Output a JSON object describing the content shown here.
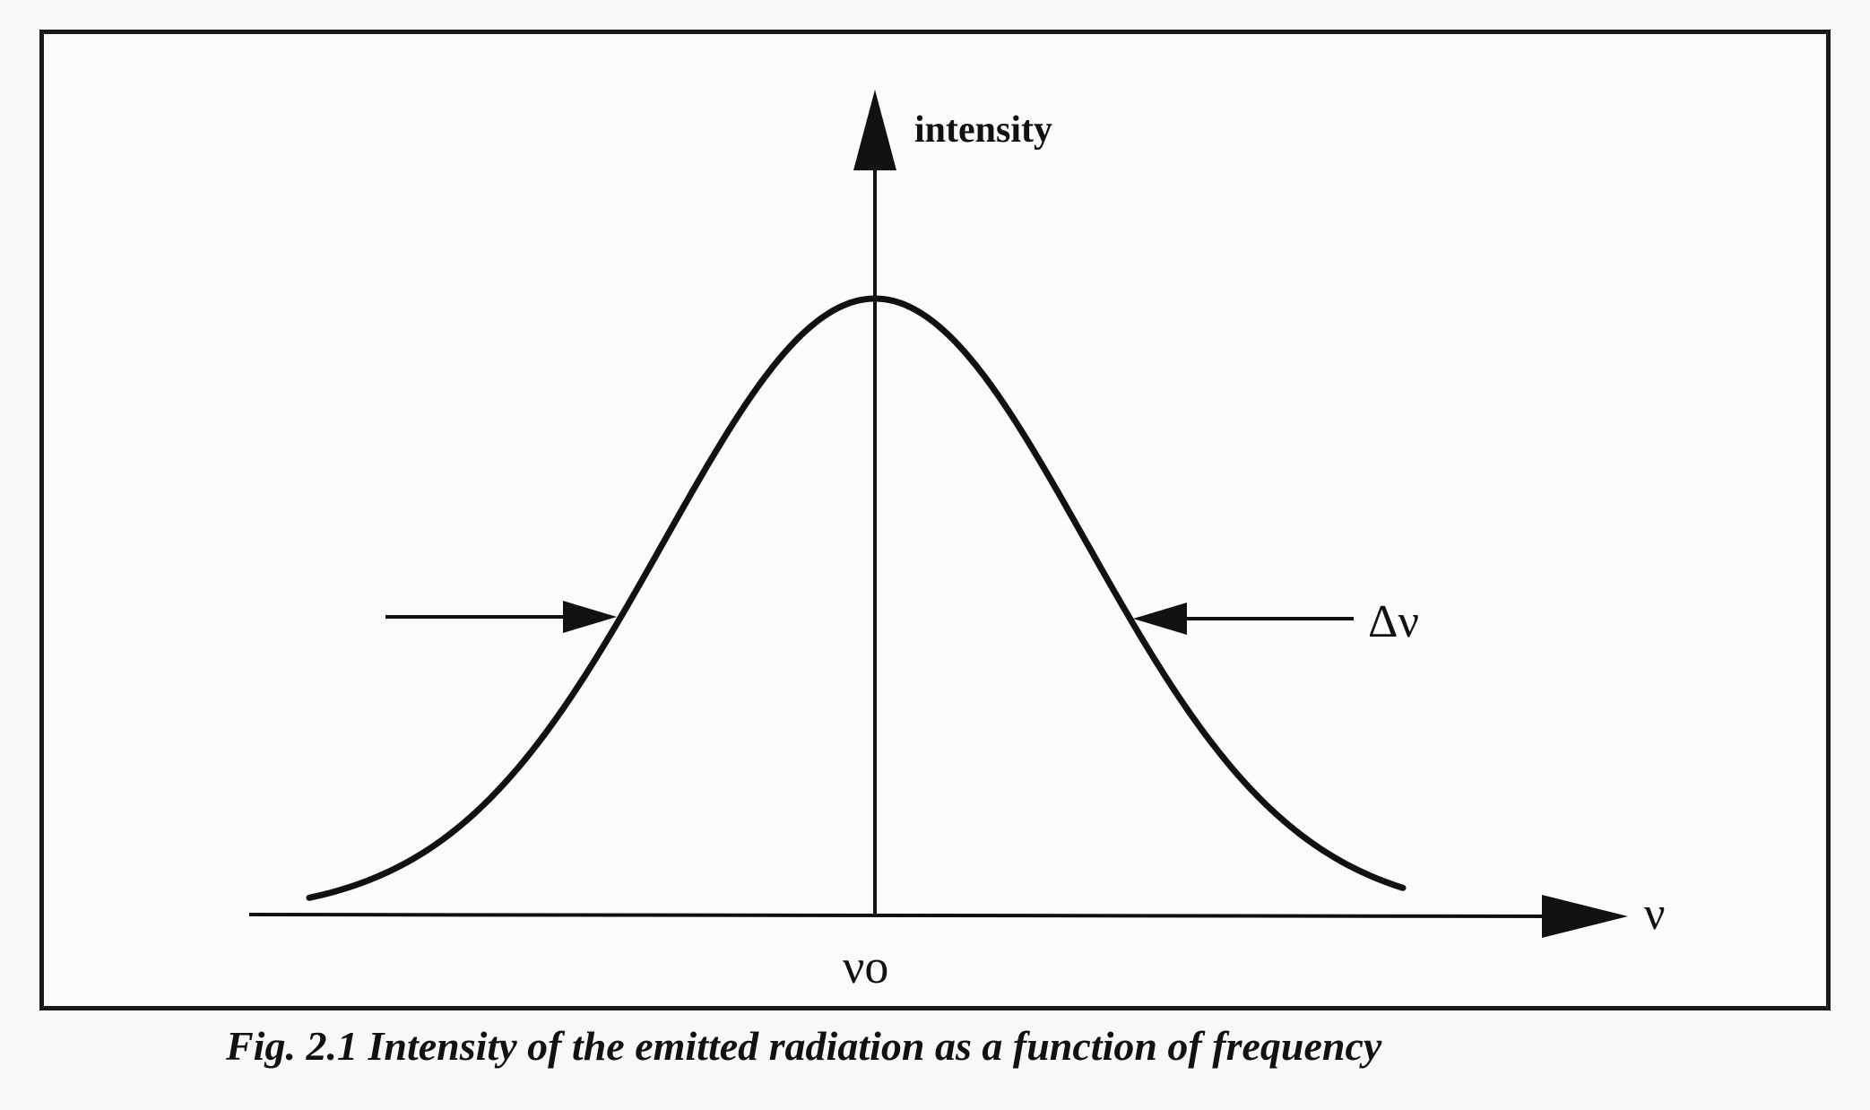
{
  "figure": {
    "y_axis_label": "intensity",
    "x_axis_label": "ν",
    "center_label": "νo",
    "width_label": "Δν",
    "caption": "Fig. 2.1  Intensity  of the emitted  radiation as a function of frequency"
  },
  "colors": {
    "ink": "#111111",
    "paper": "#f8f8f6"
  }
}
